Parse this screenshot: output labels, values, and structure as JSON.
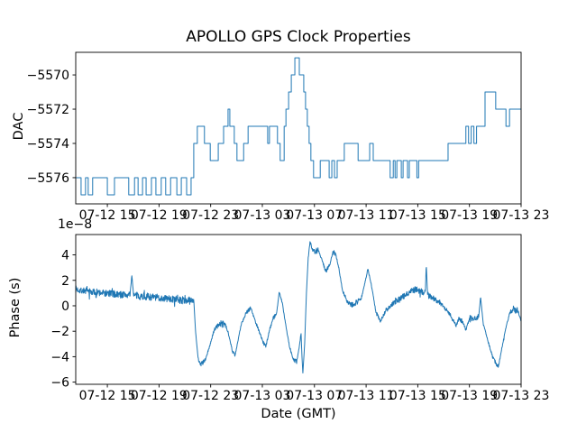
{
  "title": "APOLLO GPS Clock Properties",
  "xlabel": "Date (GMT)",
  "line_color": "#1f77b4",
  "x_ticks": {
    "labels": [
      "07-12 15",
      "07-12 19",
      "07-12 23",
      "07-13 03",
      "07-13 07",
      "07-13 11",
      "07-13 15",
      "07-13 19",
      "07-13 23"
    ],
    "fractions": [
      0.071,
      0.187,
      0.303,
      0.419,
      0.536,
      0.652,
      0.768,
      0.884,
      1.0
    ]
  },
  "chart_data": [
    {
      "type": "line",
      "subtype": "steps",
      "name": "DAC",
      "ylabel": "DAC",
      "grid": false,
      "legend": null,
      "y_ticks": [
        -5570,
        -5572,
        -5574,
        -5576
      ],
      "y_tick_labels": [
        "−5570",
        "−5572",
        "−5574",
        "−5576"
      ],
      "ylim": [
        -5577.53,
        -5568.68
      ],
      "steps": [
        [
          0.0,
          -5576
        ],
        [
          0.012,
          -5577
        ],
        [
          0.022,
          -5576
        ],
        [
          0.028,
          -5577
        ],
        [
          0.038,
          -5576
        ],
        [
          0.071,
          -5577
        ],
        [
          0.087,
          -5576
        ],
        [
          0.119,
          -5577
        ],
        [
          0.132,
          -5576
        ],
        [
          0.14,
          -5577
        ],
        [
          0.15,
          -5576
        ],
        [
          0.158,
          -5577
        ],
        [
          0.17,
          -5576
        ],
        [
          0.18,
          -5577
        ],
        [
          0.192,
          -5576
        ],
        [
          0.202,
          -5577
        ],
        [
          0.213,
          -5576
        ],
        [
          0.227,
          -5577
        ],
        [
          0.237,
          -5576
        ],
        [
          0.249,
          -5577
        ],
        [
          0.259,
          -5576
        ],
        [
          0.265,
          -5574
        ],
        [
          0.273,
          -5573
        ],
        [
          0.289,
          -5574
        ],
        [
          0.302,
          -5575
        ],
        [
          0.32,
          -5574
        ],
        [
          0.332,
          -5573
        ],
        [
          0.342,
          -5572
        ],
        [
          0.346,
          -5573
        ],
        [
          0.356,
          -5574
        ],
        [
          0.362,
          -5575
        ],
        [
          0.377,
          -5574
        ],
        [
          0.387,
          -5573
        ],
        [
          0.431,
          -5574
        ],
        [
          0.435,
          -5573
        ],
        [
          0.453,
          -5574
        ],
        [
          0.459,
          -5575
        ],
        [
          0.468,
          -5573
        ],
        [
          0.472,
          -5572
        ],
        [
          0.478,
          -5571
        ],
        [
          0.484,
          -5570
        ],
        [
          0.492,
          -5569
        ],
        [
          0.502,
          -5570
        ],
        [
          0.512,
          -5571
        ],
        [
          0.516,
          -5572
        ],
        [
          0.52,
          -5573
        ],
        [
          0.524,
          -5574
        ],
        [
          0.528,
          -5575
        ],
        [
          0.534,
          -5576
        ],
        [
          0.549,
          -5575
        ],
        [
          0.569,
          -5576
        ],
        [
          0.575,
          -5575
        ],
        [
          0.581,
          -5576
        ],
        [
          0.587,
          -5575
        ],
        [
          0.603,
          -5574
        ],
        [
          0.634,
          -5575
        ],
        [
          0.66,
          -5574
        ],
        [
          0.668,
          -5575
        ],
        [
          0.706,
          -5576
        ],
        [
          0.713,
          -5575
        ],
        [
          0.717,
          -5576
        ],
        [
          0.721,
          -5575
        ],
        [
          0.731,
          -5576
        ],
        [
          0.735,
          -5575
        ],
        [
          0.745,
          -5576
        ],
        [
          0.749,
          -5575
        ],
        [
          0.766,
          -5576
        ],
        [
          0.77,
          -5575
        ],
        [
          0.836,
          -5574
        ],
        [
          0.876,
          -5573
        ],
        [
          0.882,
          -5574
        ],
        [
          0.888,
          -5573
        ],
        [
          0.894,
          -5574
        ],
        [
          0.9,
          -5573
        ],
        [
          0.919,
          -5571
        ],
        [
          0.943,
          -5572
        ],
        [
          0.966,
          -5573
        ],
        [
          0.974,
          -5572
        ],
        [
          1.0,
          -5572
        ]
      ]
    },
    {
      "type": "line",
      "subtype": "noisy",
      "name": "Phase",
      "ylabel": "Phase (s)",
      "offset_label": "1e−8",
      "unit_scale": "1e-8",
      "grid": false,
      "legend": null,
      "y_ticks": [
        4,
        2,
        0,
        -2,
        -4,
        -6
      ],
      "y_tick_labels": [
        "4",
        "2",
        "0",
        "−2",
        "−4",
        "−6"
      ],
      "ylim": [
        -6.17,
        5.6
      ],
      "noise_amplitude": 0.3,
      "samples": 1500,
      "anchors": [
        [
          0.0,
          1.3
        ],
        [
          0.032,
          1.1
        ],
        [
          0.063,
          1.0
        ],
        [
          0.093,
          0.9
        ],
        [
          0.119,
          0.85
        ],
        [
          0.122,
          0.9
        ],
        [
          0.126,
          2.4
        ],
        [
          0.13,
          0.8
        ],
        [
          0.154,
          0.75
        ],
        [
          0.194,
          0.6
        ],
        [
          0.235,
          0.45
        ],
        [
          0.259,
          0.4
        ],
        [
          0.265,
          0.5
        ],
        [
          0.269,
          -2.0
        ],
        [
          0.275,
          -4.2
        ],
        [
          0.281,
          -4.6
        ],
        [
          0.291,
          -4.3
        ],
        [
          0.302,
          -3.0
        ],
        [
          0.312,
          -1.8
        ],
        [
          0.324,
          -1.4
        ],
        [
          0.336,
          -1.5
        ],
        [
          0.344,
          -2.3
        ],
        [
          0.352,
          -3.6
        ],
        [
          0.358,
          -3.9
        ],
        [
          0.364,
          -2.8
        ],
        [
          0.372,
          -1.4
        ],
        [
          0.383,
          -0.5
        ],
        [
          0.393,
          -0.15
        ],
        [
          0.403,
          -1.2
        ],
        [
          0.413,
          -2.1
        ],
        [
          0.421,
          -2.9
        ],
        [
          0.427,
          -3.2
        ],
        [
          0.435,
          -1.9
        ],
        [
          0.443,
          -1.0
        ],
        [
          0.451,
          -0.6
        ],
        [
          0.457,
          1.1
        ],
        [
          0.464,
          0.2
        ],
        [
          0.472,
          -1.6
        ],
        [
          0.48,
          -3.2
        ],
        [
          0.488,
          -4.2
        ],
        [
          0.496,
          -4.4
        ],
        [
          0.502,
          -3.2
        ],
        [
          0.506,
          -2.2
        ],
        [
          0.508,
          -4.0
        ],
        [
          0.51,
          -5.3
        ],
        [
          0.514,
          -3.0
        ],
        [
          0.518,
          1.0
        ],
        [
          0.522,
          3.8
        ],
        [
          0.526,
          5.0
        ],
        [
          0.532,
          4.4
        ],
        [
          0.538,
          4.3
        ],
        [
          0.545,
          4.4
        ],
        [
          0.553,
          3.6
        ],
        [
          0.561,
          2.7
        ],
        [
          0.569,
          3.1
        ],
        [
          0.577,
          4.1
        ],
        [
          0.583,
          4.2
        ],
        [
          0.591,
          2.9
        ],
        [
          0.599,
          1.2
        ],
        [
          0.609,
          0.4
        ],
        [
          0.619,
          0.1
        ],
        [
          0.632,
          0.3
        ],
        [
          0.642,
          0.7
        ],
        [
          0.65,
          1.9
        ],
        [
          0.656,
          2.9
        ],
        [
          0.664,
          1.6
        ],
        [
          0.674,
          -0.5
        ],
        [
          0.684,
          -1.2
        ],
        [
          0.696,
          -0.4
        ],
        [
          0.713,
          0.2
        ],
        [
          0.729,
          0.6
        ],
        [
          0.743,
          0.9
        ],
        [
          0.757,
          1.3
        ],
        [
          0.773,
          1.2
        ],
        [
          0.785,
          1.0
        ],
        [
          0.787,
          3.3
        ],
        [
          0.79,
          0.9
        ],
        [
          0.803,
          0.6
        ],
        [
          0.82,
          0.2
        ],
        [
          0.834,
          -0.4
        ],
        [
          0.846,
          -1.0
        ],
        [
          0.854,
          -1.6
        ],
        [
          0.86,
          -1.0
        ],
        [
          0.87,
          -1.3
        ],
        [
          0.876,
          -1.9
        ],
        [
          0.884,
          -1.0
        ],
        [
          0.897,
          -1.1
        ],
        [
          0.905,
          -0.8
        ],
        [
          0.909,
          0.7
        ],
        [
          0.915,
          -1.4
        ],
        [
          0.925,
          -2.7
        ],
        [
          0.935,
          -3.9
        ],
        [
          0.943,
          -4.5
        ],
        [
          0.949,
          -4.8
        ],
        [
          0.957,
          -3.3
        ],
        [
          0.966,
          -1.7
        ],
        [
          0.974,
          -0.6
        ],
        [
          0.982,
          -0.3
        ],
        [
          0.99,
          -0.3
        ],
        [
          0.996,
          -0.7
        ],
        [
          1.0,
          -1.3
        ]
      ]
    }
  ]
}
